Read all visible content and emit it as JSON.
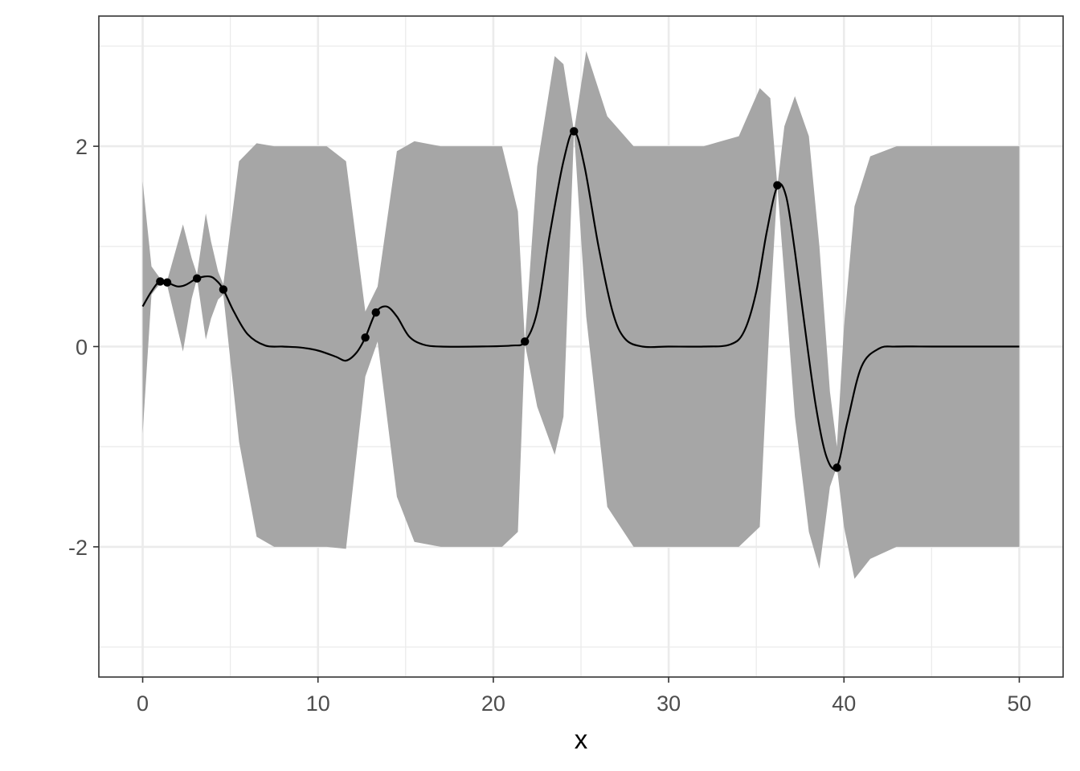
{
  "chart_data": {
    "type": "line",
    "title": "",
    "xlabel": "x",
    "ylabel": "",
    "xlim": [
      -2.5,
      52.5
    ],
    "ylim": [
      -3.3,
      3.3
    ],
    "x_ticks": [
      0,
      10,
      20,
      30,
      40,
      50
    ],
    "x_tick_labels": [
      "0",
      "10",
      "20",
      "30",
      "40",
      "50"
    ],
    "y_ticks": [
      -2,
      0,
      2
    ],
    "y_tick_labels": [
      "-2",
      "0",
      "2"
    ],
    "minor_x_ticks": [
      5,
      15,
      25,
      35,
      45
    ],
    "minor_y_ticks": [
      -3,
      -1,
      1,
      3
    ],
    "grid": true,
    "legend": "none",
    "colors": {
      "ribbon": "#a6a6a6",
      "line": "#000000",
      "points": "#000000",
      "grid": "#ebebeb",
      "border": "#333333"
    },
    "series": [
      {
        "type": "ribbon",
        "x": [
          0.0,
          0.5,
          1.0,
          1.2,
          1.4,
          2.3,
          2.8,
          3.1,
          3.6,
          3.9,
          4.3,
          4.6,
          5.5,
          6.5,
          7.5,
          9.0,
          10.5,
          11.6,
          12.7,
          13.4,
          14.5,
          15.5,
          17.0,
          19.0,
          20.5,
          21.4,
          21.8,
          22.5,
          23.5,
          24.0,
          24.6,
          25.3,
          26.5,
          28.0,
          30.0,
          32.0,
          34.0,
          35.2,
          35.8,
          36.2,
          36.6,
          37.2,
          38.0,
          38.6,
          39.2,
          39.6,
          40.0,
          40.6,
          41.5,
          43.0,
          45.0,
          47.5,
          50.0
        ],
        "upper": [
          1.65,
          0.8,
          0.68,
          0.66,
          0.66,
          1.22,
          0.88,
          0.72,
          1.33,
          1.05,
          0.75,
          0.62,
          1.85,
          2.03,
          2.0,
          2.0,
          2.0,
          1.85,
          0.35,
          0.6,
          1.95,
          2.05,
          2.0,
          2.0,
          2.0,
          1.35,
          0.05,
          1.8,
          2.9,
          2.82,
          2.15,
          2.95,
          2.3,
          2.0,
          2.0,
          2.0,
          2.1,
          2.58,
          2.48,
          1.6,
          2.2,
          2.5,
          2.1,
          1.0,
          -0.45,
          -1.0,
          0.2,
          1.4,
          1.9,
          2.0,
          2.0,
          2.0,
          2.0
        ],
        "lower": [
          -0.87,
          0.52,
          0.63,
          0.62,
          0.61,
          -0.05,
          0.48,
          0.68,
          0.07,
          0.28,
          0.47,
          0.52,
          -0.95,
          -1.9,
          -2.0,
          -2.0,
          -2.0,
          -2.02,
          -0.3,
          0.05,
          -1.5,
          -1.95,
          -2.0,
          -2.0,
          -2.0,
          -1.85,
          0.03,
          -0.6,
          -1.08,
          -0.7,
          2.15,
          0.3,
          -1.6,
          -2.0,
          -2.0,
          -2.0,
          -2.0,
          -1.8,
          0.4,
          1.6,
          0.7,
          -0.7,
          -1.85,
          -2.22,
          -1.4,
          -1.2,
          -1.8,
          -2.32,
          -2.12,
          -2.0,
          -2.0,
          -2.0,
          -2.0
        ]
      },
      {
        "type": "line",
        "x": [
          0.0,
          0.5,
          1.0,
          1.4,
          2.0,
          2.5,
          3.1,
          3.8,
          4.2,
          4.6,
          5.2,
          6.0,
          7.0,
          8.0,
          9.0,
          10.0,
          11.0,
          11.6,
          12.2,
          12.7,
          13.3,
          13.9,
          14.5,
          15.2,
          16.0,
          17.0,
          19.0,
          21.0,
          21.8,
          22.5,
          23.2,
          24.0,
          24.6,
          25.2,
          26.0,
          26.8,
          27.5,
          28.5,
          30.0,
          32.0,
          33.5,
          34.3,
          35.0,
          35.6,
          36.2,
          36.7,
          37.2,
          37.8,
          38.4,
          39.0,
          39.6,
          40.2,
          41.0,
          42.0,
          43.0,
          45.0,
          50.0
        ],
        "y": [
          0.4,
          0.55,
          0.66,
          0.64,
          0.6,
          0.62,
          0.68,
          0.7,
          0.66,
          0.57,
          0.35,
          0.12,
          0.01,
          0.0,
          -0.01,
          -0.04,
          -0.1,
          -0.14,
          -0.06,
          0.09,
          0.34,
          0.4,
          0.3,
          0.1,
          0.02,
          0.0,
          0.0,
          0.01,
          0.05,
          0.35,
          1.1,
          1.85,
          2.15,
          1.8,
          1.0,
          0.35,
          0.08,
          0.0,
          0.0,
          0.0,
          0.02,
          0.15,
          0.55,
          1.15,
          1.6,
          1.5,
          0.95,
          0.15,
          -0.6,
          -1.1,
          -1.2,
          -0.75,
          -0.2,
          -0.02,
          0.0,
          0.0,
          0.0
        ]
      },
      {
        "type": "scatter",
        "x": [
          1.0,
          1.4,
          3.1,
          4.6,
          12.7,
          13.3,
          21.8,
          24.6,
          36.2,
          39.6
        ],
        "y": [
          0.65,
          0.64,
          0.68,
          0.57,
          0.09,
          0.34,
          0.05,
          2.15,
          1.61,
          -1.21
        ]
      }
    ]
  }
}
